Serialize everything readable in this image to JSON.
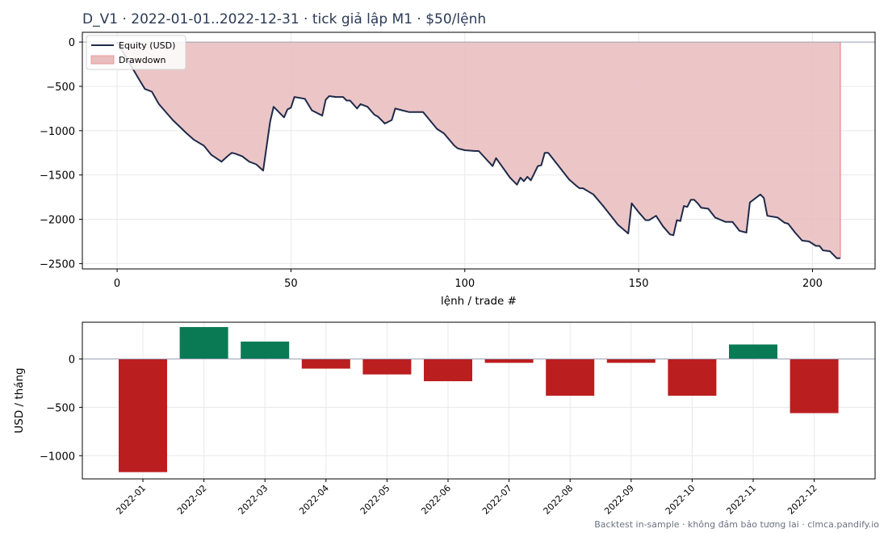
{
  "title": "D_V1 · 2022-01-01..2022-12-31 · tick giả lập M1 · $50/lệnh",
  "footer": "Backtest in-sample · không đảm bảo tương lai · clmca.pandify.io",
  "colors": {
    "equity": "#1f2a4a",
    "drawdown_fill": "#e9bcbd",
    "drawdown_edge": "#e79a9c",
    "positive": "#0a7a55",
    "negative": "#bb1e1f",
    "zero_line": "#9aa0b5",
    "grid": "#e8e8e8",
    "title": "#2b3a55",
    "footer": "#6b7280"
  },
  "chart_data": [
    {
      "type": "line",
      "xlabel": "lệnh / trade #",
      "ylabel": "",
      "xlim": [
        -10,
        218
      ],
      "ylim": [
        -2560,
        110
      ],
      "xticks": [
        0,
        50,
        100,
        150,
        200
      ],
      "yticks": [
        0,
        -500,
        -1000,
        -1500,
        -2000,
        -2500
      ],
      "grid": true,
      "legend_position": "top-left",
      "series": [
        {
          "name": "Equity (USD)",
          "x": [
            0,
            3,
            6,
            8,
            10,
            12,
            16,
            20,
            22,
            25,
            27,
            30,
            32,
            33,
            34,
            36,
            38,
            40,
            42,
            44,
            45,
            48,
            49,
            50,
            51,
            54,
            56,
            59,
            60,
            61,
            63,
            65,
            66,
            67,
            69,
            70,
            72,
            74,
            75,
            77,
            79,
            80,
            82,
            84,
            88,
            92,
            94,
            97,
            98,
            100,
            103,
            104,
            108,
            109,
            113,
            115,
            116,
            117,
            118,
            119,
            121,
            122,
            123,
            124,
            126,
            128,
            130,
            132,
            133,
            134,
            137,
            140,
            144,
            147,
            148,
            150,
            152,
            153,
            155,
            157,
            159,
            160,
            161,
            162,
            163,
            164,
            165,
            166,
            167,
            168,
            170,
            172,
            175,
            177,
            179,
            181,
            182,
            185,
            186,
            187,
            190,
            192,
            193,
            195,
            197,
            199,
            201,
            202,
            203,
            205,
            206,
            207,
            208
          ],
          "values": [
            0,
            -200,
            -400,
            -530,
            -560,
            -700,
            -880,
            -1030,
            -1100,
            -1170,
            -1270,
            -1350,
            -1280,
            -1250,
            -1260,
            -1290,
            -1350,
            -1380,
            -1450,
            -900,
            -730,
            -850,
            -760,
            -740,
            -620,
            -640,
            -770,
            -830,
            -650,
            -610,
            -620,
            -620,
            -660,
            -660,
            -750,
            -700,
            -730,
            -820,
            -840,
            -920,
            -880,
            -750,
            -770,
            -790,
            -790,
            -980,
            -1030,
            -1170,
            -1200,
            -1220,
            -1230,
            -1230,
            -1400,
            -1310,
            -1530,
            -1610,
            -1530,
            -1570,
            -1520,
            -1560,
            -1400,
            -1390,
            -1250,
            -1250,
            -1350,
            -1450,
            -1550,
            -1620,
            -1650,
            -1650,
            -1720,
            -1860,
            -2060,
            -2160,
            -1820,
            -1920,
            -2010,
            -2010,
            -1960,
            -2080,
            -2170,
            -2180,
            -2010,
            -2020,
            -1850,
            -1860,
            -1780,
            -1780,
            -1820,
            -1870,
            -1880,
            -1980,
            -2030,
            -2030,
            -2130,
            -2150,
            -1810,
            -1720,
            -1760,
            -1960,
            -1980,
            -2040,
            -2050,
            -2150,
            -2240,
            -2250,
            -2300,
            -2300,
            -2350,
            -2360,
            -2400,
            -2440,
            -2440
          ]
        },
        {
          "name": "Drawdown",
          "type": "area",
          "note": "filled between running peak (0) and equity"
        }
      ]
    },
    {
      "type": "bar",
      "ylabel": "USD / tháng",
      "ylim": [
        -1240,
        380
      ],
      "yticks": [
        0,
        -500,
        -1000
      ],
      "grid": true,
      "categories": [
        "2022-01",
        "2022-02",
        "2022-03",
        "2022-04",
        "2022-05",
        "2022-06",
        "2022-07",
        "2022-08",
        "2022-09",
        "2022-10",
        "2022-11",
        "2022-12"
      ],
      "values": [
        -1170,
        330,
        180,
        -100,
        -160,
        -230,
        -40,
        -380,
        -40,
        -380,
        150,
        -560
      ]
    }
  ]
}
